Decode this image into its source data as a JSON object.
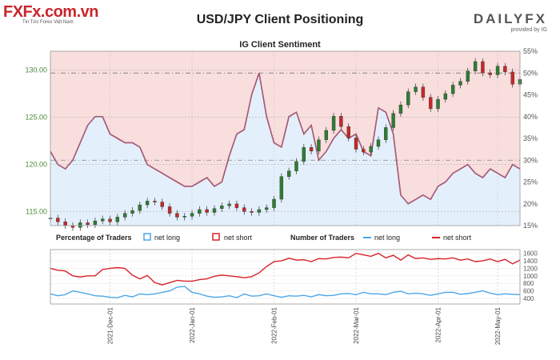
{
  "header": {
    "logo_text": "FXFx.com.vn",
    "logo_tagline": "Tin Tức Forex Việt Nam",
    "title": "USD/JPY Client Positioning",
    "brand": "DAILYFX",
    "brand_sub": "provided by IG",
    "subtitle": "IG Client Sentiment"
  },
  "legend": {
    "pct_label": "Percentage of Traders",
    "net_long": "net long",
    "net_short": "net short",
    "num_label": "Number of Traders",
    "num_net_long": "net long",
    "num_net_short": "net short"
  },
  "colors": {
    "long": "#4da6e8",
    "short": "#d9222a",
    "long_fill": "#e3f0fb",
    "short_fill": "#f9dede",
    "candle_up": "#2e7d32",
    "candle_down": "#c62828"
  },
  "chart_data": [
    {
      "type": "line",
      "name": "price-and-percentage",
      "y_left_ticks": [
        "115.00",
        "120.00",
        "125.00",
        "130.00"
      ],
      "y_left_range": [
        113.5,
        132
      ],
      "y_right_ticks": [
        "15%",
        "20%",
        "25%",
        "30%",
        "35%",
        "40%",
        "45%",
        "50%",
        "55%"
      ],
      "y_right_range": [
        15,
        55
      ],
      "x_labels": [
        "2021-Dec-01",
        "2022-Jan-01",
        "2022-Feb-01",
        "2022-Mar-01",
        "2022-Apr-01",
        "2022-May-01"
      ],
      "price_close": [
        114.3,
        113.9,
        113.5,
        113.3,
        113.8,
        113.6,
        114.0,
        114.2,
        113.9,
        114.4,
        114.8,
        115.1,
        115.7,
        116.1,
        116.0,
        115.5,
        114.8,
        114.4,
        114.5,
        114.8,
        115.2,
        114.9,
        115.3,
        115.6,
        115.8,
        115.4,
        115.0,
        114.9,
        115.2,
        115.4,
        116.3,
        118.7,
        119.3,
        120.3,
        121.8,
        121.4,
        122.6,
        123.6,
        125.1,
        124.0,
        122.8,
        121.6,
        121.3,
        121.9,
        122.6,
        123.9,
        125.4,
        126.3,
        127.7,
        128.2,
        127.1,
        125.9,
        126.9,
        127.5,
        128.4,
        128.8,
        129.9,
        130.9,
        129.7,
        129.5,
        130.4,
        129.8,
        128.5,
        129.0
      ],
      "pct_long": [
        32,
        29,
        28,
        30,
        34,
        38,
        40,
        40,
        36,
        35,
        34,
        34,
        33,
        29,
        28,
        27,
        26,
        25,
        24,
        24,
        25,
        26,
        24,
        25,
        31,
        36,
        37,
        45,
        50,
        40,
        34,
        33,
        40,
        41,
        36,
        38,
        30,
        32,
        35,
        37,
        35,
        36,
        32,
        31,
        42,
        41,
        36,
        22,
        20,
        21,
        22,
        21,
        24,
        25,
        27,
        28,
        29,
        27,
        26,
        28,
        27,
        26,
        29,
        28
      ],
      "pct_short": [
        68,
        71,
        72,
        70,
        66,
        62,
        60,
        60,
        64,
        65,
        66,
        66,
        67,
        71,
        72,
        73,
        74,
        75,
        76,
        76,
        75,
        74,
        76,
        75,
        69,
        64,
        63,
        55,
        50,
        60,
        66,
        67,
        60,
        59,
        64,
        62,
        70,
        68,
        65,
        63,
        65,
        64,
        68,
        69,
        58,
        59,
        64,
        78,
        80,
        79,
        78,
        79,
        76,
        75,
        73,
        72,
        71,
        73,
        74,
        72,
        73,
        74,
        71,
        72
      ]
    },
    {
      "type": "line",
      "name": "number-of-traders",
      "y_ticks": [
        "400",
        "600",
        "800",
        "1000",
        "1200",
        "1400",
        "1600"
      ],
      "y_range": [
        250,
        1700
      ],
      "net_long": [
        520,
        470,
        500,
        600,
        560,
        520,
        470,
        460,
        430,
        420,
        480,
        440,
        520,
        500,
        520,
        560,
        600,
        700,
        720,
        560,
        520,
        460,
        430,
        440,
        470,
        420,
        520,
        460,
        470,
        520,
        470,
        430,
        470,
        460,
        480,
        440,
        500,
        470,
        480,
        520,
        530,
        500,
        560,
        520,
        520,
        500,
        560,
        590,
        520,
        540,
        520,
        480,
        520,
        560,
        560,
        510,
        530,
        560,
        600,
        540,
        500,
        520,
        510,
        500
      ],
      "net_short": [
        1200,
        1150,
        1130,
        1000,
        970,
        1000,
        1000,
        1170,
        1200,
        1220,
        1200,
        1020,
        920,
        1010,
        820,
        760,
        820,
        880,
        860,
        860,
        900,
        920,
        990,
        1020,
        1000,
        980,
        950,
        980,
        1080,
        1250,
        1380,
        1400,
        1470,
        1420,
        1430,
        1380,
        1460,
        1450,
        1490,
        1500,
        1480,
        1600,
        1560,
        1520,
        1600,
        1480,
        1550,
        1420,
        1560,
        1460,
        1480,
        1440,
        1460,
        1450,
        1480,
        1420,
        1450,
        1380,
        1400,
        1450,
        1380,
        1440,
        1320,
        1420
      ]
    }
  ]
}
